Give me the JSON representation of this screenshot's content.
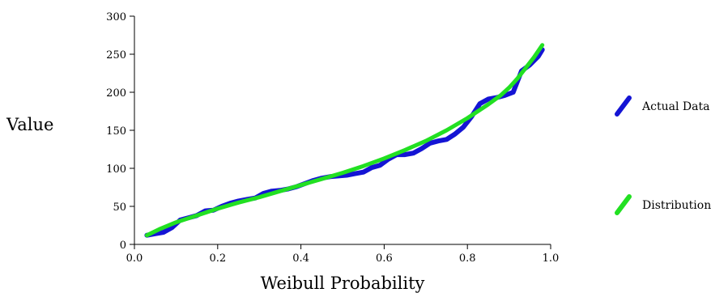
{
  "chart_data": {
    "type": "line",
    "title": "",
    "xlabel": "Weibull Probability",
    "ylabel": "Value",
    "xlim": [
      0,
      1
    ],
    "ylim": [
      0,
      300
    ],
    "x_ticks": [
      0,
      0.2,
      0.4,
      0.6,
      0.8,
      1
    ],
    "x_tick_labels": [
      "0.0",
      "0.2",
      "0.4",
      "0.6",
      "0.8",
      "1.0"
    ],
    "y_ticks": [
      0,
      50,
      100,
      150,
      200,
      250,
      300
    ],
    "y_tick_labels": [
      "0",
      "50",
      "100",
      "150",
      "200",
      "250",
      "300"
    ],
    "grid": false,
    "legend_position": "right",
    "series": [
      {
        "name": "Actual Data",
        "color": "#1414d4",
        "x": [
          0.03,
          0.05,
          0.07,
          0.09,
          0.11,
          0.13,
          0.15,
          0.17,
          0.19,
          0.21,
          0.23,
          0.25,
          0.27,
          0.29,
          0.31,
          0.33,
          0.35,
          0.37,
          0.39,
          0.41,
          0.43,
          0.45,
          0.47,
          0.49,
          0.51,
          0.53,
          0.55,
          0.57,
          0.59,
          0.61,
          0.63,
          0.65,
          0.67,
          0.69,
          0.71,
          0.73,
          0.75,
          0.77,
          0.79,
          0.81,
          0.83,
          0.85,
          0.87,
          0.89,
          0.91,
          0.93,
          0.95,
          0.97,
          0.98
        ],
        "values": [
          12,
          14,
          16,
          22,
          32,
          35,
          38,
          44,
          45,
          50,
          54,
          57,
          59,
          61,
          67,
          70,
          71,
          73,
          76,
          80,
          84,
          87,
          89,
          90,
          91,
          93,
          95,
          101,
          104,
          112,
          118,
          118,
          120,
          126,
          133,
          136,
          138,
          145,
          154,
          168,
          185,
          191,
          193,
          196,
          200,
          228,
          236,
          247,
          256
        ]
      },
      {
        "name": "Distribution",
        "color": "#22e022",
        "x": [
          0.03,
          0.06,
          0.1,
          0.15,
          0.2,
          0.25,
          0.3,
          0.35,
          0.4,
          0.45,
          0.5,
          0.55,
          0.6,
          0.65,
          0.7,
          0.75,
          0.8,
          0.85,
          0.88,
          0.9,
          0.92,
          0.94,
          0.96,
          0.98
        ],
        "values": [
          12,
          20,
          29,
          38,
          47,
          55,
          62,
          70,
          78,
          86,
          94,
          103,
          113,
          124,
          136,
          150,
          166,
          184,
          196,
          206,
          218,
          232,
          246,
          262
        ]
      }
    ]
  }
}
